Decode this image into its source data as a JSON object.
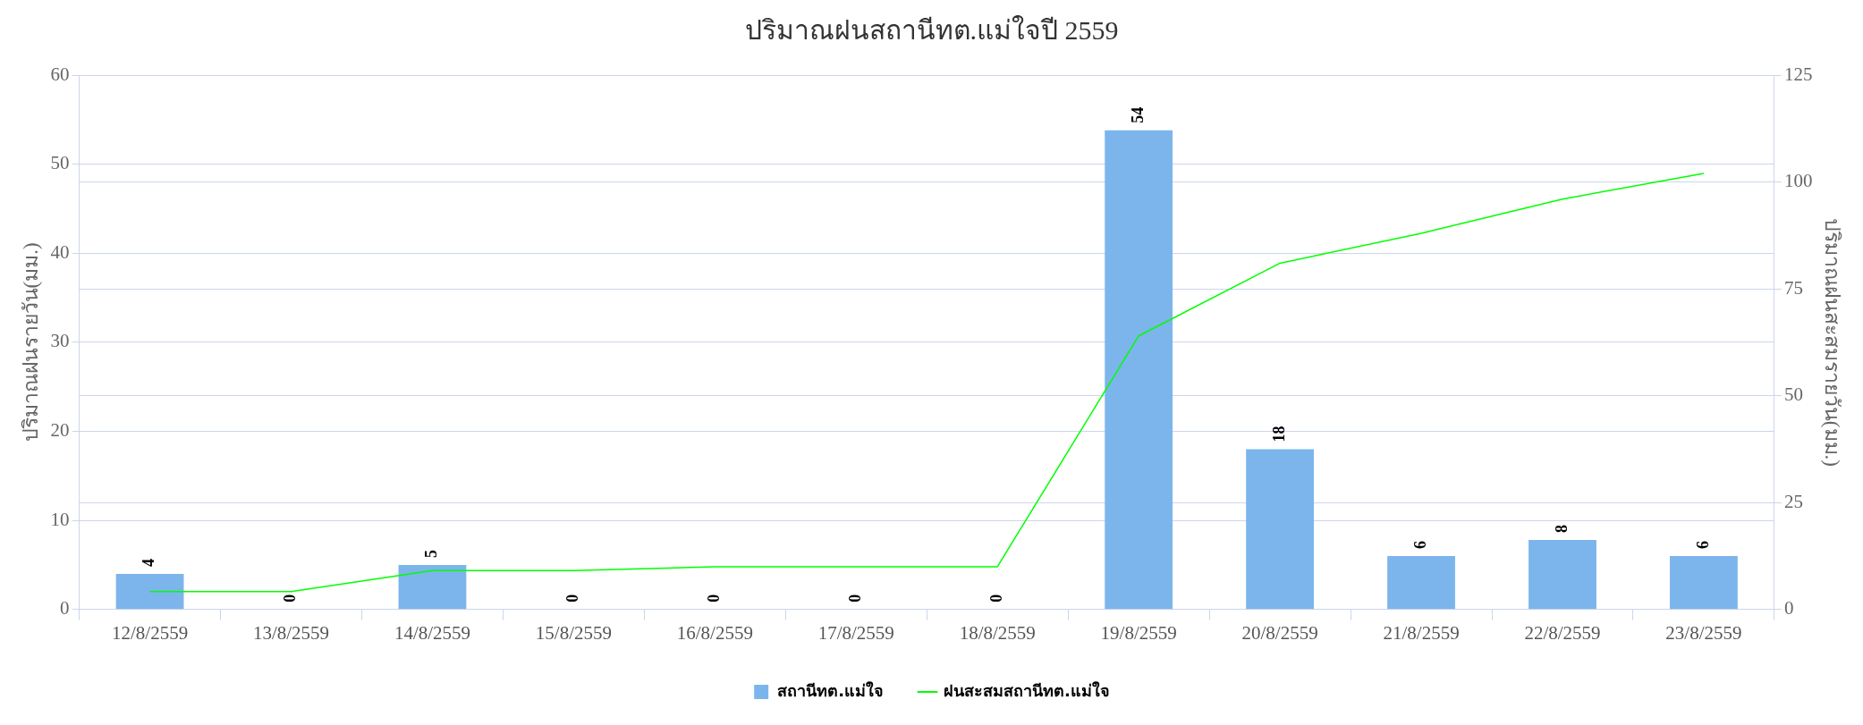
{
  "chart_data": {
    "type": "bar",
    "title": "ปริมาณฝนสถานีทต.แม่ใจปี 2559",
    "ylabel": "ปริมาณฝนรายวัน(มม.)",
    "y2label": "ปริมาณฝนสะสมรายวัน(มม.)",
    "categories": [
      "12/8/2559",
      "13/8/2559",
      "14/8/2559",
      "15/8/2559",
      "16/8/2559",
      "17/8/2559",
      "18/8/2559",
      "19/8/2559",
      "20/8/2559",
      "21/8/2559",
      "22/8/2559",
      "23/8/2559"
    ],
    "series": [
      {
        "name": "สถานีทต.แม่ใจ",
        "color": "#7cb5ec",
        "values": [
          4,
          0,
          5,
          0,
          0,
          0,
          0,
          53.8,
          18,
          6,
          7.8,
          6
        ],
        "value_labels": [
          "4",
          "0",
          "5",
          "0",
          "0",
          "0",
          "0",
          "54",
          "18",
          "6",
          "8",
          "6"
        ]
      },
      {
        "name": "ฝนสะสมสถานีทต.แม่ใจ",
        "type": "line",
        "axis": "y2",
        "color": "#00ff00",
        "values": [
          4.2,
          4.2,
          9.1,
          9.1,
          10,
          10,
          10,
          64,
          81,
          88,
          96,
          102
        ]
      }
    ],
    "ylim": [
      0,
      60
    ],
    "yticks": [
      0,
      10,
      20,
      30,
      40,
      50,
      60
    ],
    "y2lim": [
      0,
      125
    ],
    "y2ticks": [
      0,
      25,
      50,
      75,
      100,
      125
    ],
    "grid": "y",
    "legend": "bottom",
    "marker": "none",
    "line_style": "solid"
  }
}
